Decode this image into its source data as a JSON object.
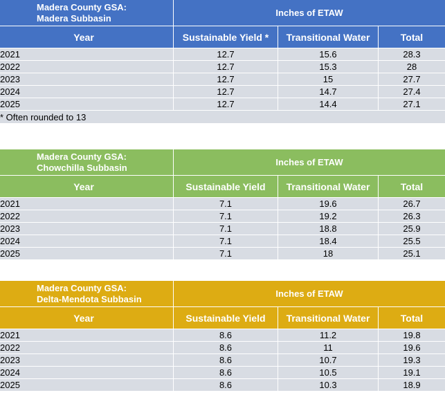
{
  "tables": [
    {
      "title_line1": "Madera County GSA:",
      "title_line2": "Madera Subbasin",
      "group_header": "Inches of ETAW",
      "columns": [
        "Year",
        "Sustainable Yield *",
        "Transitional Water",
        "Total"
      ],
      "rows": [
        [
          "2021",
          "12.7",
          "15.6",
          "28.3"
        ],
        [
          "2022",
          "12.7",
          "15.3",
          "28"
        ],
        [
          "2023",
          "12.7",
          "15",
          "27.7"
        ],
        [
          "2024",
          "12.7",
          "14.7",
          "27.4"
        ],
        [
          "2025",
          "12.7",
          "14.4",
          "27.1"
        ]
      ],
      "note": "* Often rounded to 13",
      "color": "#4472c4"
    },
    {
      "title_line1": "Madera County GSA:",
      "title_line2": "Chowchilla Subbasin",
      "group_header": "Inches of ETAW",
      "columns": [
        "Year",
        "Sustainable Yield",
        "Transitional Water",
        "Total"
      ],
      "rows": [
        [
          "2021",
          "7.1",
          "19.6",
          "26.7"
        ],
        [
          "2022",
          "7.1",
          "19.2",
          "26.3"
        ],
        [
          "2023",
          "7.1",
          "18.8",
          "25.9"
        ],
        [
          "2024",
          "7.1",
          "18.4",
          "25.5"
        ],
        [
          "2025",
          "7.1",
          "18",
          "25.1"
        ]
      ],
      "color": "#8bbd5f"
    },
    {
      "title_line1": "Madera County GSA:",
      "title_line2": "Delta-Mendota Subbasin",
      "group_header": "Inches of ETAW",
      "columns": [
        "Year",
        "Sustainable Yield",
        "Transitional Water",
        "Total"
      ],
      "rows": [
        [
          "2021",
          "8.6",
          "11.2",
          "19.8"
        ],
        [
          "2022",
          "8.6",
          "11",
          "19.6"
        ],
        [
          "2023",
          "8.6",
          "10.7",
          "19.3"
        ],
        [
          "2024",
          "8.6",
          "10.5",
          "19.1"
        ],
        [
          "2025",
          "8.6",
          "10.3",
          "18.9"
        ]
      ],
      "color": "#ddac13"
    }
  ]
}
